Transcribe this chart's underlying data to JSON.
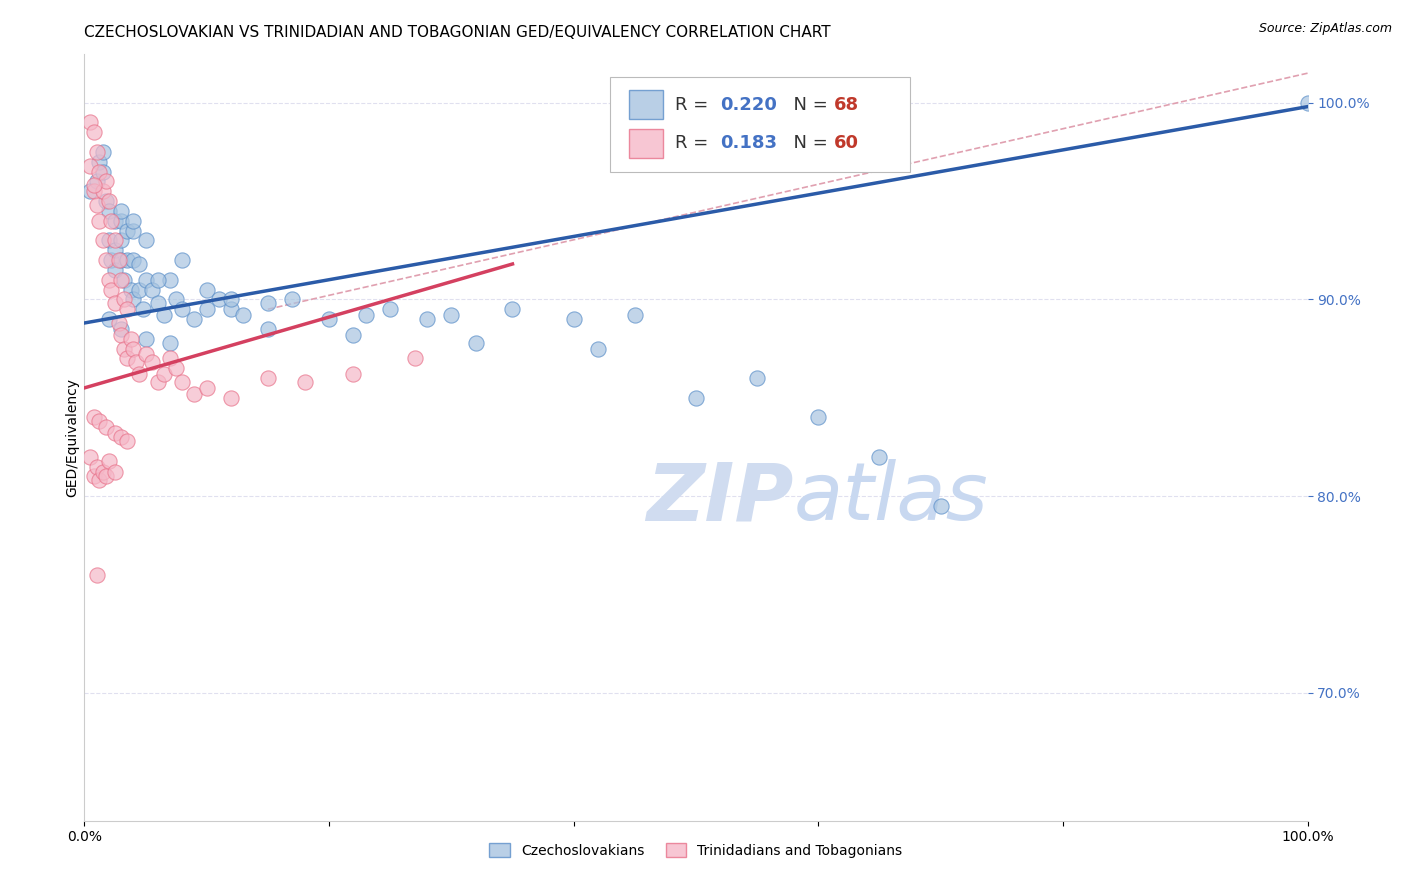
{
  "title": "CZECHOSLOVAKIAN VS TRINIDADIAN AND TOBAGONIAN GED/EQUIVALENCY CORRELATION CHART",
  "source": "Source: ZipAtlas.com",
  "ylabel": "GED/Equivalency",
  "xlim": [
    0.0,
    1.0
  ],
  "ylim": [
    0.635,
    1.025
  ],
  "ytick_positions": [
    0.7,
    0.8,
    0.9,
    1.0
  ],
  "ytick_labels": [
    "70.0%",
    "80.0%",
    "90.0%",
    "100.0%"
  ],
  "blue_color": "#A8C4E0",
  "blue_edge_color": "#5B8FC9",
  "pink_color": "#F5B8C8",
  "pink_edge_color": "#E8728A",
  "blue_line_color": "#2B5BA8",
  "pink_line_color": "#D44060",
  "dashed_line_color": "#E0A0B0",
  "watermark_color": "#D0DCF0",
  "tick_color": "#4472C4",
  "legend_R_color": "#4472C4",
  "legend_N_color": "#C0392B",
  "blue_R": 0.22,
  "blue_N": 68,
  "pink_R": 0.183,
  "pink_N": 60,
  "blue_scatter_x": [
    0.005,
    0.01,
    0.012,
    0.015,
    0.015,
    0.018,
    0.02,
    0.02,
    0.022,
    0.025,
    0.025,
    0.025,
    0.03,
    0.03,
    0.03,
    0.032,
    0.035,
    0.035,
    0.038,
    0.04,
    0.04,
    0.04,
    0.045,
    0.045,
    0.048,
    0.05,
    0.05,
    0.055,
    0.06,
    0.065,
    0.07,
    0.075,
    0.08,
    0.09,
    0.1,
    0.11,
    0.12,
    0.13,
    0.15,
    0.17,
    0.2,
    0.23,
    0.25,
    0.28,
    0.3,
    0.35,
    0.4,
    0.45,
    0.5,
    0.55,
    0.6,
    0.65,
    0.7,
    1.0,
    0.02,
    0.03,
    0.05,
    0.07,
    0.1,
    0.15,
    0.22,
    0.32,
    0.42,
    0.12,
    0.08,
    0.06,
    0.04,
    0.03
  ],
  "blue_scatter_y": [
    0.955,
    0.96,
    0.97,
    0.975,
    0.965,
    0.95,
    0.945,
    0.93,
    0.92,
    0.94,
    0.925,
    0.915,
    0.94,
    0.93,
    0.92,
    0.91,
    0.935,
    0.92,
    0.905,
    0.935,
    0.92,
    0.9,
    0.918,
    0.905,
    0.895,
    0.93,
    0.91,
    0.905,
    0.898,
    0.892,
    0.91,
    0.9,
    0.895,
    0.89,
    0.905,
    0.9,
    0.895,
    0.892,
    0.898,
    0.9,
    0.89,
    0.892,
    0.895,
    0.89,
    0.892,
    0.895,
    0.89,
    0.892,
    0.85,
    0.86,
    0.84,
    0.82,
    0.795,
    1.0,
    0.89,
    0.885,
    0.88,
    0.878,
    0.895,
    0.885,
    0.882,
    0.878,
    0.875,
    0.9,
    0.92,
    0.91,
    0.94,
    0.945
  ],
  "pink_scatter_x": [
    0.005,
    0.005,
    0.008,
    0.008,
    0.01,
    0.01,
    0.012,
    0.012,
    0.015,
    0.015,
    0.018,
    0.018,
    0.02,
    0.02,
    0.022,
    0.022,
    0.025,
    0.025,
    0.028,
    0.028,
    0.03,
    0.03,
    0.032,
    0.032,
    0.035,
    0.035,
    0.038,
    0.04,
    0.042,
    0.045,
    0.05,
    0.055,
    0.06,
    0.065,
    0.07,
    0.075,
    0.08,
    0.09,
    0.1,
    0.12,
    0.15,
    0.18,
    0.22,
    0.27,
    0.005,
    0.008,
    0.01,
    0.012,
    0.015,
    0.018,
    0.02,
    0.025,
    0.008,
    0.012,
    0.018,
    0.025,
    0.03,
    0.035,
    0.01,
    0.008
  ],
  "pink_scatter_y": [
    0.99,
    0.968,
    0.985,
    0.955,
    0.975,
    0.948,
    0.965,
    0.94,
    0.955,
    0.93,
    0.96,
    0.92,
    0.95,
    0.91,
    0.94,
    0.905,
    0.93,
    0.898,
    0.92,
    0.888,
    0.91,
    0.882,
    0.9,
    0.875,
    0.895,
    0.87,
    0.88,
    0.875,
    0.868,
    0.862,
    0.872,
    0.868,
    0.858,
    0.862,
    0.87,
    0.865,
    0.858,
    0.852,
    0.855,
    0.85,
    0.86,
    0.858,
    0.862,
    0.87,
    0.82,
    0.81,
    0.815,
    0.808,
    0.812,
    0.81,
    0.818,
    0.812,
    0.84,
    0.838,
    0.835,
    0.832,
    0.83,
    0.828,
    0.76,
    0.958
  ],
  "blue_line_x": [
    0.0,
    1.0
  ],
  "blue_line_y": [
    0.888,
    0.998
  ],
  "pink_line_x": [
    0.0,
    0.35
  ],
  "pink_line_y": [
    0.855,
    0.918
  ],
  "dashed_line_x": [
    0.15,
    1.0
  ],
  "dashed_line_y": [
    0.895,
    1.015
  ],
  "grid_color": "#DDDDEE",
  "bg_color": "#FFFFFF",
  "title_fontsize": 11,
  "axis_fontsize": 10,
  "tick_fontsize": 10,
  "legend_fontsize": 13,
  "source_fontsize": 9,
  "marker_size": 120
}
